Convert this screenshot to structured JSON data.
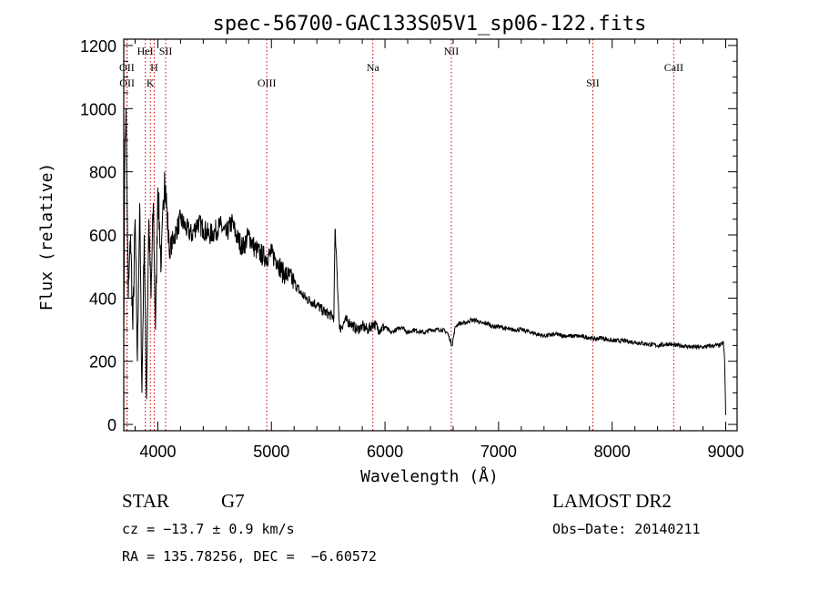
{
  "chart_data": {
    "type": "line",
    "title": "spec-56700-GAC133S05V1_sp06-122.fits",
    "xlabel": "Wavelength (Å)",
    "ylabel": "Flux (relative)",
    "xlim": [
      3700,
      9100
    ],
    "ylim": [
      -20,
      1220
    ],
    "x_ticks": [
      4000,
      5000,
      6000,
      7000,
      8000,
      9000
    ],
    "y_ticks": [
      0,
      200,
      400,
      600,
      800,
      1000,
      1200
    ],
    "grid": false,
    "series": [
      {
        "x": [
          3700,
          3710,
          3720,
          3730,
          3740,
          3760,
          3780,
          3800,
          3820,
          3840,
          3860,
          3880,
          3900,
          3920,
          3940,
          3960,
          3980,
          4000,
          4030,
          4060,
          4100,
          4150,
          4200,
          4250,
          4300,
          4350,
          4400,
          4450,
          4500,
          4550,
          4600,
          4650,
          4700,
          4750,
          4800,
          4850,
          4900,
          4950,
          5000,
          5050,
          5100,
          5150,
          5200,
          5250,
          5300,
          5350,
          5400,
          5450,
          5500,
          5550,
          5560,
          5600,
          5650,
          5700,
          5750,
          5800,
          5850,
          5900,
          5950,
          6000,
          6050,
          6100,
          6150,
          6200,
          6250,
          6300,
          6350,
          6400,
          6450,
          6500,
          6550,
          6570,
          6590,
          6620,
          6650,
          6700,
          6750,
          6800,
          6850,
          6900,
          6950,
          7000,
          7100,
          7200,
          7300,
          7400,
          7500,
          7600,
          7700,
          7800,
          7850,
          7900,
          8000,
          8100,
          8200,
          8300,
          8400,
          8500,
          8550,
          8600,
          8700,
          8800,
          8900,
          8950,
          8980,
          8990,
          9000
        ],
        "y": [
          300,
          900,
          1000,
          700,
          400,
          600,
          300,
          650,
          200,
          700,
          100,
          600,
          80,
          650,
          400,
          700,
          300,
          750,
          500,
          800,
          550,
          600,
          650,
          620,
          600,
          640,
          620,
          600,
          610,
          630,
          600,
          640,
          590,
          560,
          600,
          560,
          540,
          530,
          540,
          520,
          480,
          470,
          450,
          420,
          400,
          390,
          380,
          360,
          350,
          340,
          620,
          300,
          330,
          320,
          300,
          310,
          300,
          320,
          300,
          310,
          290,
          300,
          310,
          290,
          300,
          295,
          290,
          300,
          300,
          300,
          290,
          270,
          250,
          310,
          320,
          320,
          330,
          330,
          320,
          320,
          310,
          310,
          300,
          300,
          290,
          280,
          285,
          280,
          280,
          275,
          270,
          275,
          265,
          265,
          260,
          255,
          250,
          255,
          250,
          250,
          245,
          245,
          250,
          250,
          260,
          200,
          30
        ]
      }
    ],
    "lines": [
      {
        "label": "OII",
        "x": 3727,
        "row": 2
      },
      {
        "label": "OII",
        "x": 3729,
        "row": 3
      },
      {
        "label": "HeI",
        "x": 3889,
        "row": 1
      },
      {
        "label": "H",
        "x": 3968,
        "row": 2
      },
      {
        "label": "K",
        "x": 3934,
        "row": 3
      },
      {
        "label": "SII",
        "x": 4069,
        "row": 1
      },
      {
        "label": "OIII",
        "x": 4959,
        "row": 3
      },
      {
        "label": "Na",
        "x": 5893,
        "row": 2
      },
      {
        "label": "NII",
        "x": 6584,
        "row": 1
      },
      {
        "label": "SII",
        "x": 7830,
        "row": 3
      },
      {
        "label": "CaII",
        "x": 8542,
        "row": 2
      }
    ],
    "line_color": "#cc0000"
  },
  "info": {
    "object_type": "STAR",
    "subclass": "G7",
    "survey": "LAMOST DR2",
    "redshift": "cz = −13.7 ± 0.9 km/s",
    "obs_date": "Obs−Date: 20140211",
    "coords": "RA = 135.78256, DEC =  −6.60572"
  }
}
